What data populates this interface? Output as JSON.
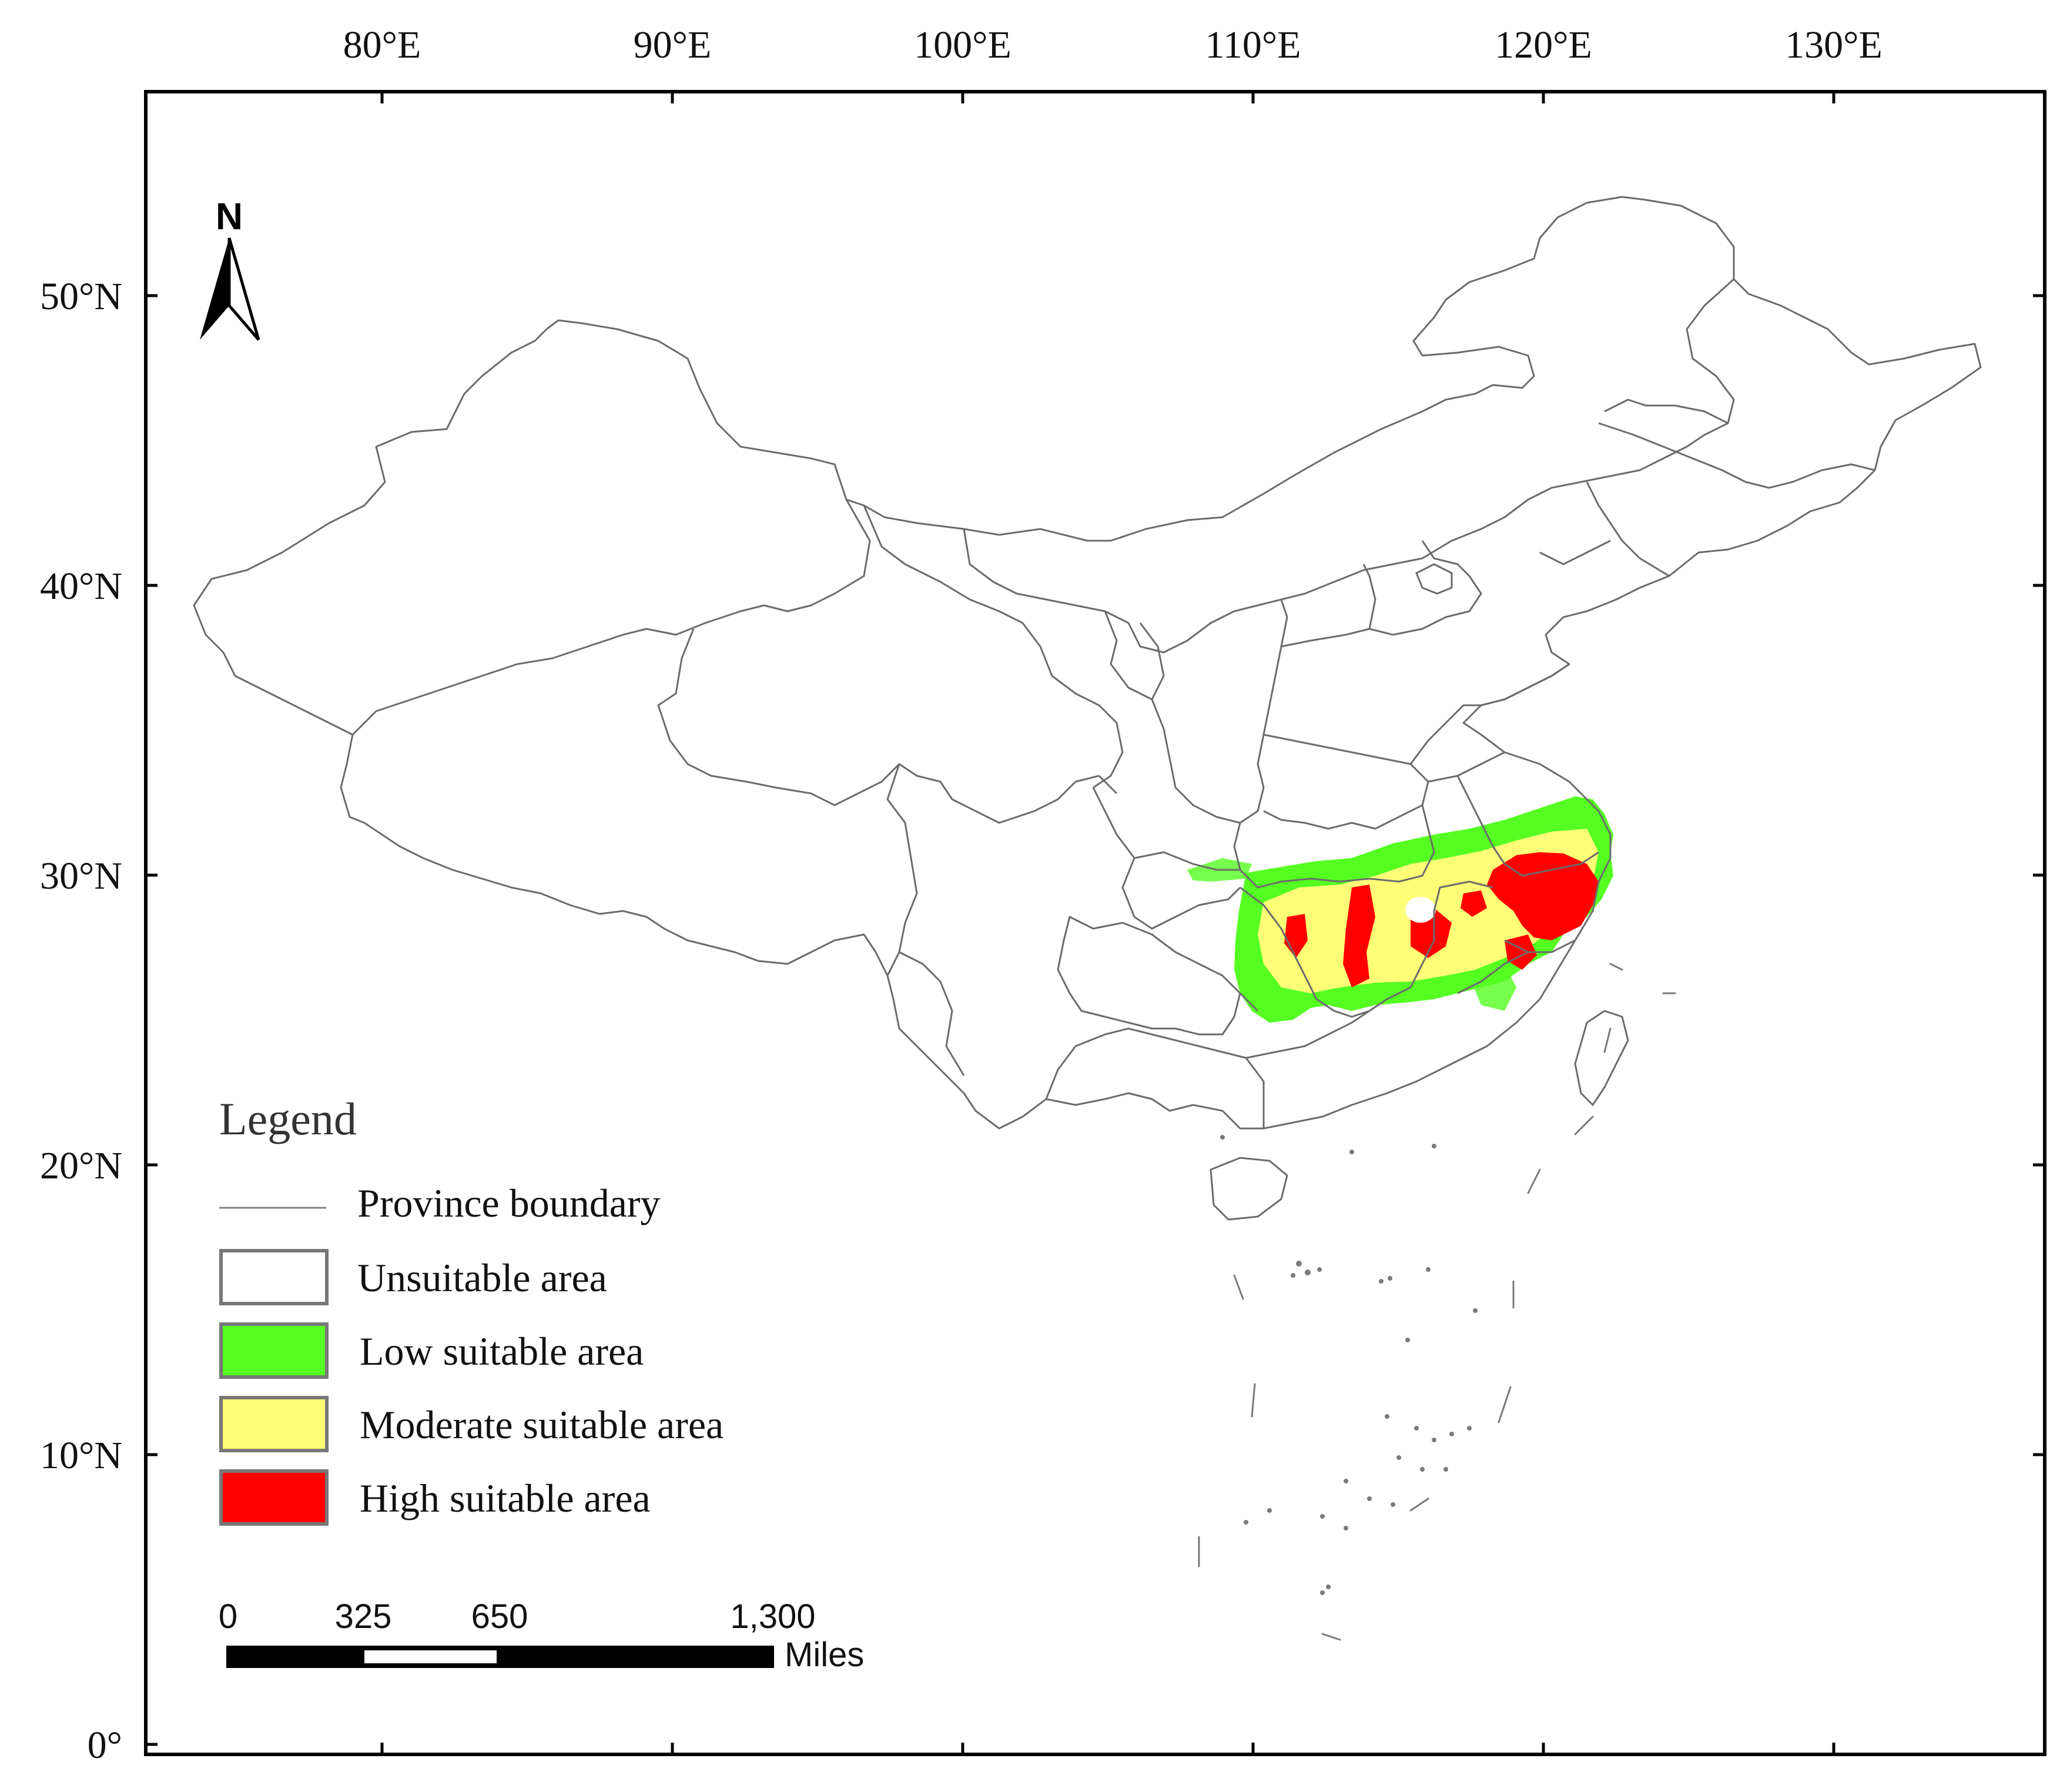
{
  "map": {
    "lon_ticks": [
      "80°E",
      "90°E",
      "100°E",
      "110°E",
      "120°E",
      "130°E"
    ],
    "lat_ticks": [
      "50°N",
      "40°N",
      "30°N",
      "20°N",
      "10°N",
      "0°"
    ],
    "north_label": "N"
  },
  "legend": {
    "title": "Legend",
    "items": [
      {
        "label": "Province boundary",
        "symbol": "line",
        "color": "#808080"
      },
      {
        "label": "Unsuitable area",
        "symbol": "box",
        "color": "#ffffff"
      },
      {
        "label": "Low suitable area",
        "symbol": "box",
        "color": "#55ff22"
      },
      {
        "label": "Moderate suitable area",
        "symbol": "box",
        "color": "#ffff77"
      },
      {
        "label": "High suitable area",
        "symbol": "box",
        "color": "#ff0000"
      }
    ]
  },
  "scale_bar": {
    "ticks": [
      "0",
      "325",
      "650",
      "1,300"
    ],
    "unit": "Miles"
  },
  "colors": {
    "low": "#55ff22",
    "moderate": "#ffff77",
    "high": "#ff0000",
    "boundary": "#6b6b6b"
  }
}
